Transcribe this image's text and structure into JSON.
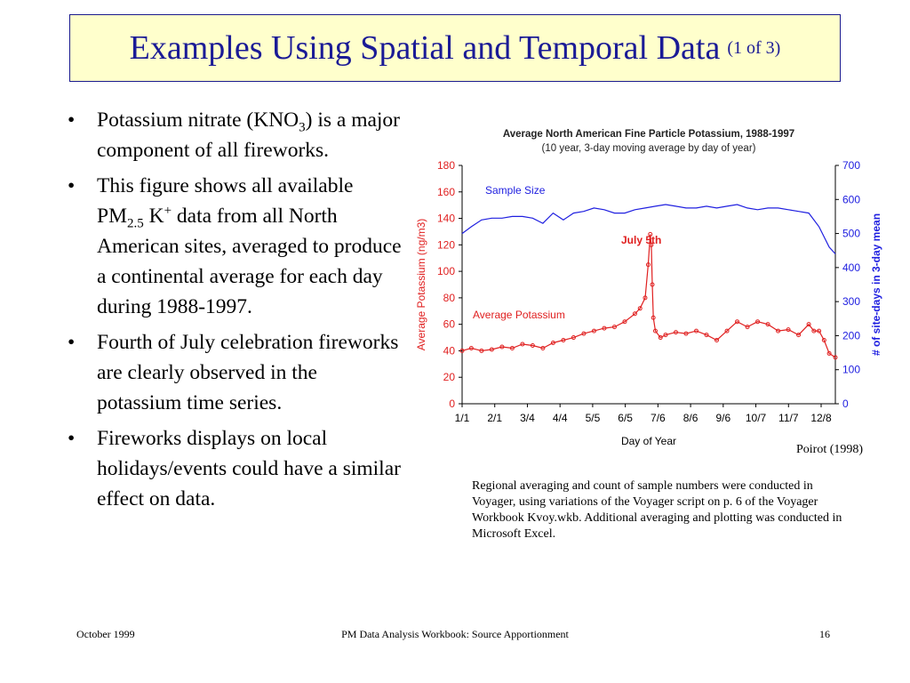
{
  "title": {
    "main": "Examples Using Spatial and Temporal Data",
    "sub": "(1 of 3)",
    "background": "#ffffcc",
    "color": "#1b1b96"
  },
  "bullets": [
    {
      "parts": [
        {
          "t": "Potassium nitrate (KNO"
        },
        {
          "sub": "3"
        },
        {
          "t": ") is a major component of all fireworks."
        }
      ]
    },
    {
      "parts": [
        {
          "t": "This figure shows all available PM"
        },
        {
          "sub": "2.5"
        },
        {
          "t": " K"
        },
        {
          "sup": "+"
        },
        {
          "t": " data from all North American sites, averaged to produce a continental average for each day during 1988-1997."
        }
      ]
    },
    {
      "parts": [
        {
          "t": "Fourth of July celebration fireworks are clearly observed in the potassium time series."
        }
      ]
    },
    {
      "parts": [
        {
          "t": "Fireworks displays on local holidays/events could have a similar effect on data."
        }
      ]
    }
  ],
  "bullet_glyph": "•",
  "credit": "Poirot (1998)",
  "caption": "Regional averaging and count of sample numbers were conducted in Voyager, using variations of the Voyager script on p. 6 of the Voyager Workbook Kvoy.wkb.  Additional averaging and plotting was conducted in Microsoft Excel.",
  "footer": {
    "left": "October 1999",
    "center": "PM Data Analysis Workbook: Source Apportionment",
    "right": "16"
  },
  "chart_data": {
    "type": "line",
    "title": "Average North American Fine Particle Potassium, 1988-1997",
    "subtitle": "(10 year, 3-day moving average by day of year)",
    "xlabel": "Day of Year",
    "ylabel": "Average Potassium (ng/m3)",
    "y2label": "# of site-days in 3-day mean",
    "x_ticks": [
      "1/1",
      "2/1",
      "3/4",
      "4/4",
      "5/5",
      "6/5",
      "7/6",
      "8/6",
      "9/6",
      "10/7",
      "11/7",
      "12/8"
    ],
    "xlim": [
      1,
      366
    ],
    "ylim": [
      0,
      180
    ],
    "y_ticks": [
      0,
      20,
      40,
      60,
      80,
      100,
      120,
      140,
      160,
      180
    ],
    "y2lim": [
      0,
      700
    ],
    "y2_ticks": [
      0,
      100,
      200,
      300,
      400,
      500,
      600,
      700
    ],
    "annotations": [
      "Sample Size",
      "July   5th",
      "Average Potassium"
    ],
    "colors": {
      "potassium": "#e02020",
      "sample_size": "#2020e0",
      "axis_left": "#e02020",
      "axis_right": "#2020e0"
    },
    "series": [
      {
        "name": "Average Potassium",
        "axis": "left",
        "x": [
          1,
          10,
          20,
          30,
          40,
          50,
          60,
          70,
          80,
          90,
          100,
          110,
          120,
          130,
          140,
          150,
          160,
          170,
          175,
          180,
          183,
          185,
          186,
          187,
          188,
          190,
          195,
          200,
          210,
          220,
          230,
          240,
          250,
          260,
          270,
          280,
          290,
          300,
          310,
          320,
          330,
          340,
          345,
          350,
          355,
          360,
          366
        ],
        "y": [
          40,
          42,
          40,
          41,
          43,
          42,
          45,
          44,
          42,
          46,
          48,
          50,
          53,
          55,
          57,
          58,
          62,
          68,
          72,
          80,
          105,
          128,
          120,
          90,
          65,
          55,
          50,
          52,
          54,
          53,
          55,
          52,
          48,
          55,
          62,
          58,
          62,
          60,
          55,
          56,
          52,
          60,
          55,
          55,
          48,
          38,
          35
        ]
      },
      {
        "name": "Sample Size",
        "axis": "right",
        "x": [
          1,
          10,
          20,
          30,
          40,
          50,
          60,
          70,
          80,
          90,
          100,
          110,
          120,
          130,
          140,
          150,
          160,
          170,
          180,
          190,
          200,
          210,
          220,
          230,
          240,
          250,
          260,
          270,
          280,
          290,
          300,
          310,
          320,
          330,
          340,
          350,
          360,
          366
        ],
        "y": [
          500,
          520,
          540,
          545,
          545,
          550,
          550,
          545,
          530,
          560,
          540,
          560,
          565,
          575,
          570,
          560,
          560,
          570,
          575,
          580,
          585,
          580,
          575,
          575,
          580,
          575,
          580,
          585,
          575,
          570,
          575,
          575,
          570,
          565,
          560,
          520,
          460,
          440
        ]
      }
    ]
  }
}
